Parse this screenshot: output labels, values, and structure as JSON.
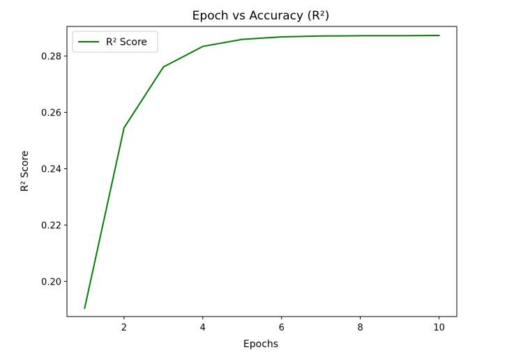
{
  "chart_data": {
    "type": "line",
    "title": "Epoch vs Accuracy (R²)",
    "xlabel": "Epochs",
    "ylabel": "R² Score",
    "xlim": [
      0.55,
      10.45
    ],
    "ylim": [
      0.1875,
      0.2905
    ],
    "xticks": [
      2,
      4,
      6,
      8,
      10
    ],
    "yticks": [
      0.2,
      0.22,
      0.24,
      0.26,
      0.28
    ],
    "xtick_labels": [
      "2",
      "4",
      "6",
      "8",
      "10"
    ],
    "ytick_labels": [
      "0.20",
      "0.22",
      "0.24",
      "0.26",
      "0.28"
    ],
    "grid": false,
    "legend_position": "upper-left",
    "series": [
      {
        "name": "R² Score",
        "color": "#008000",
        "x": [
          1,
          2,
          3,
          4,
          5,
          6,
          7,
          8,
          9,
          10
        ],
        "y": [
          0.1905,
          0.2545,
          0.2761,
          0.2834,
          0.2859,
          0.2868,
          0.2871,
          0.2872,
          0.2872,
          0.2873
        ]
      }
    ]
  }
}
